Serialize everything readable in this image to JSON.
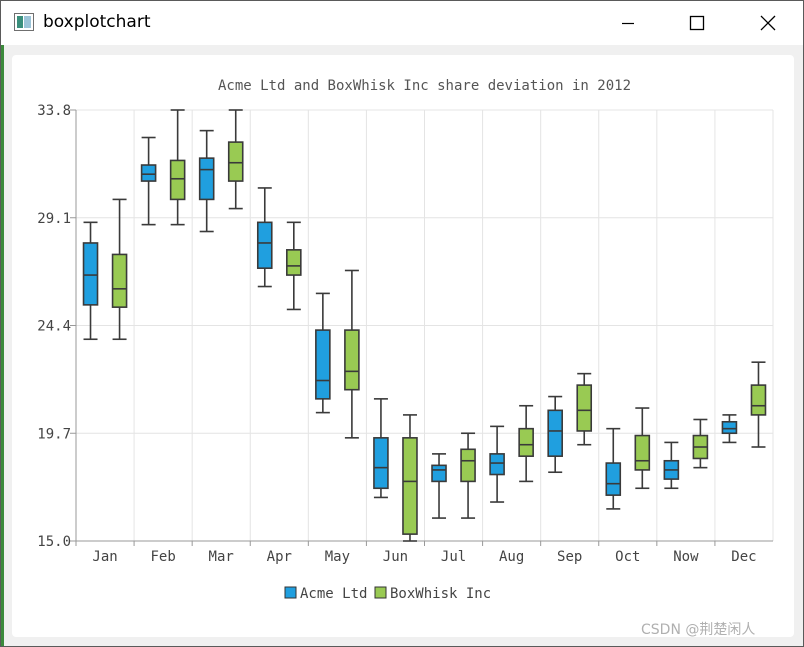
{
  "window": {
    "title": "boxplotchart",
    "icon": "chart-app-icon"
  },
  "watermark": "CSDN @荆楚闲人",
  "chart_data": {
    "type": "boxplot",
    "title": "Acme Ltd and BoxWhisk Inc share deviation in 2012",
    "categories": [
      "Jan",
      "Feb",
      "Mar",
      "Apr",
      "May",
      "Jun",
      "Jul",
      "Aug",
      "Sep",
      "Oct",
      "Now",
      "Dec"
    ],
    "yticks": [
      "33.8",
      "29.1",
      "24.4",
      "19.7",
      "15.0"
    ],
    "ylim": [
      15.0,
      33.8
    ],
    "grid": true,
    "legend_position": "bottom",
    "series": [
      {
        "name": "Acme Ltd",
        "color": "#209fdf",
        "boxes": [
          {
            "min": 23.8,
            "q1": 25.3,
            "median": 26.6,
            "q3": 28.0,
            "max": 28.9
          },
          {
            "min": 28.8,
            "q1": 30.7,
            "median": 31.0,
            "q3": 31.4,
            "max": 32.6
          },
          {
            "min": 28.5,
            "q1": 29.9,
            "median": 31.2,
            "q3": 31.7,
            "max": 32.9
          },
          {
            "min": 26.1,
            "q1": 26.9,
            "median": 28.0,
            "q3": 28.9,
            "max": 30.4
          },
          {
            "min": 20.6,
            "q1": 21.2,
            "median": 22.0,
            "q3": 24.2,
            "max": 25.8
          },
          {
            "min": 16.9,
            "q1": 17.3,
            "median": 18.2,
            "q3": 19.5,
            "max": 21.2
          },
          {
            "min": 16.0,
            "q1": 17.6,
            "median": 18.1,
            "q3": 18.3,
            "max": 18.8
          },
          {
            "min": 16.7,
            "q1": 17.9,
            "median": 18.4,
            "q3": 18.8,
            "max": 20.0
          },
          {
            "min": 18.0,
            "q1": 18.7,
            "median": 19.8,
            "q3": 20.7,
            "max": 21.3
          },
          {
            "min": 16.4,
            "q1": 17.0,
            "median": 17.5,
            "q3": 18.4,
            "max": 19.9
          },
          {
            "min": 17.3,
            "q1": 17.7,
            "median": 18.1,
            "q3": 18.5,
            "max": 19.3
          },
          {
            "min": 19.3,
            "q1": 19.7,
            "median": 19.9,
            "q3": 20.2,
            "max": 20.5
          }
        ]
      },
      {
        "name": "BoxWhisk Inc",
        "color": "#99ca53",
        "boxes": [
          {
            "min": 23.8,
            "q1": 25.2,
            "median": 26.0,
            "q3": 27.5,
            "max": 29.9
          },
          {
            "min": 28.8,
            "q1": 29.9,
            "median": 30.8,
            "q3": 31.6,
            "max": 33.8
          },
          {
            "min": 29.5,
            "q1": 30.7,
            "median": 31.5,
            "q3": 32.4,
            "max": 33.8
          },
          {
            "min": 25.1,
            "q1": 26.6,
            "median": 27.0,
            "q3": 27.7,
            "max": 28.9
          },
          {
            "min": 19.5,
            "q1": 21.6,
            "median": 22.4,
            "q3": 24.2,
            "max": 26.8
          },
          {
            "min": 15.0,
            "q1": 15.3,
            "median": 17.6,
            "q3": 19.5,
            "max": 20.5
          },
          {
            "min": 16.0,
            "q1": 17.6,
            "median": 18.5,
            "q3": 19.0,
            "max": 19.7
          },
          {
            "min": 17.6,
            "q1": 18.7,
            "median": 19.2,
            "q3": 19.9,
            "max": 20.9
          },
          {
            "min": 19.2,
            "q1": 19.8,
            "median": 20.7,
            "q3": 21.8,
            "max": 22.3
          },
          {
            "min": 17.3,
            "q1": 18.1,
            "median": 18.5,
            "q3": 19.6,
            "max": 20.8
          },
          {
            "min": 18.2,
            "q1": 18.6,
            "median": 19.1,
            "q3": 19.6,
            "max": 20.3
          },
          {
            "min": 19.1,
            "q1": 20.5,
            "median": 20.9,
            "q3": 21.8,
            "max": 22.8
          }
        ]
      }
    ]
  }
}
